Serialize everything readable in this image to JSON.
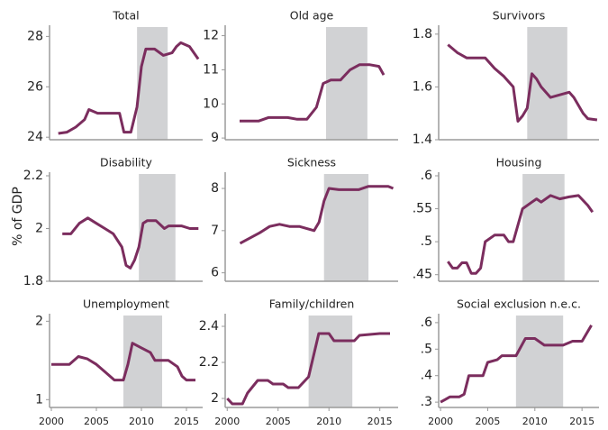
{
  "ylabel": "% of GDP",
  "chart_data": [
    {
      "type": "line",
      "title": "Total",
      "color": "#7b2d5e",
      "shade": [
        2009,
        2012.5
      ],
      "x": [
        2000,
        2001,
        2002,
        2003,
        2003.5,
        2004.5,
        2006,
        2007,
        2007.5,
        2008.3,
        2009,
        2009.5,
        2010,
        2011,
        2012,
        2013,
        2013.5,
        2014,
        2015,
        2016
      ],
      "values": [
        24.15,
        24.2,
        24.4,
        24.7,
        25.1,
        24.95,
        24.95,
        24.95,
        24.2,
        24.2,
        25.2,
        26.8,
        27.5,
        27.5,
        27.25,
        27.35,
        27.6,
        27.75,
        27.6,
        27.1
      ],
      "xlim": [
        1999,
        2016.5
      ],
      "ylim": [
        23.9,
        28.3
      ],
      "yticks": [
        24,
        26,
        28
      ]
    },
    {
      "type": "line",
      "title": "Old age",
      "color": "#7b2d5e",
      "shade": [
        2009,
        2013.3
      ],
      "x": [
        2000,
        2002,
        2003,
        2005,
        2006,
        2007,
        2008,
        2008.7,
        2009.5,
        2010.5,
        2011.5,
        2012.5,
        2013.5,
        2014.5,
        2015
      ],
      "values": [
        9.5,
        9.5,
        9.6,
        9.6,
        9.55,
        9.55,
        9.9,
        10.6,
        10.7,
        10.7,
        11.0,
        11.15,
        11.15,
        11.1,
        10.85
      ],
      "xlim": [
        1998.5,
        2016.5
      ],
      "ylim": [
        8.95,
        12.2
      ],
      "yticks": [
        9,
        10,
        11,
        12
      ]
    },
    {
      "type": "line",
      "title": "Survivors",
      "color": "#7b2d5e",
      "shade": [
        2008.5,
        2012.8
      ],
      "x": [
        2000,
        2001,
        2002,
        2004,
        2005,
        2006,
        2007,
        2007.5,
        2008,
        2008.5,
        2009,
        2009.5,
        2010,
        2011,
        2012,
        2013,
        2013.5,
        2014.5,
        2015,
        2016
      ],
      "values": [
        1.76,
        1.73,
        1.71,
        1.71,
        1.67,
        1.64,
        1.6,
        1.47,
        1.49,
        1.52,
        1.65,
        1.63,
        1.6,
        1.56,
        1.57,
        1.58,
        1.56,
        1.5,
        1.48,
        1.475
      ],
      "xlim": [
        1999,
        2016.2
      ],
      "ylim": [
        1.4,
        1.82
      ],
      "yticks": [
        1.4,
        1.6,
        1.8
      ]
    },
    {
      "type": "line",
      "title": "Disability",
      "color": "#7b2d5e",
      "shade": [
        2009,
        2013.3
      ],
      "x": [
        2000,
        2001,
        2002,
        2003,
        2004,
        2005,
        2006,
        2007,
        2007.5,
        2008,
        2008.5,
        2009,
        2009.5,
        2010,
        2011,
        2012,
        2012.5,
        2014,
        2015,
        2016
      ],
      "values": [
        1.98,
        1.98,
        2.02,
        2.04,
        2.02,
        2.0,
        1.98,
        1.93,
        1.86,
        1.85,
        1.88,
        1.93,
        2.02,
        2.03,
        2.03,
        2.0,
        2.01,
        2.01,
        2.0,
        2.0
      ],
      "xlim": [
        1998.5,
        2016.5
      ],
      "ylim": [
        1.8,
        2.2
      ],
      "yticks": [
        1.8,
        2,
        2.2
      ]
    },
    {
      "type": "line",
      "title": "Sickness",
      "color": "#7b2d5e",
      "shade": [
        2008.5,
        2013
      ],
      "x": [
        2000,
        2002,
        2003,
        2004,
        2005,
        2006,
        2007.5,
        2008,
        2008.5,
        2009,
        2010,
        2012,
        2013,
        2015,
        2015.5
      ],
      "values": [
        6.7,
        6.95,
        7.1,
        7.15,
        7.1,
        7.1,
        7.0,
        7.2,
        7.7,
        8.0,
        7.97,
        7.97,
        8.05,
        8.05,
        8.0
      ],
      "xlim": [
        1998.5,
        2016
      ],
      "ylim": [
        5.8,
        8.3
      ],
      "yticks": [
        6,
        7,
        8
      ]
    },
    {
      "type": "line",
      "title": "Housing",
      "color": "#7b2d5e",
      "shade": [
        2008,
        2012.5
      ],
      "x": [
        2000,
        2000.5,
        2001,
        2001.5,
        2002,
        2002.5,
        2003,
        2003.5,
        2004,
        2005,
        2006,
        2006.5,
        2007,
        2008,
        2009,
        2009.5,
        2010,
        2011,
        2012,
        2013,
        2014,
        2015,
        2015.5
      ],
      "values": [
        0.47,
        0.46,
        0.46,
        0.468,
        0.468,
        0.452,
        0.452,
        0.46,
        0.5,
        0.51,
        0.51,
        0.5,
        0.5,
        0.55,
        0.56,
        0.565,
        0.56,
        0.57,
        0.565,
        0.568,
        0.57,
        0.555,
        0.545
      ],
      "xlim": [
        1999,
        2016.2
      ],
      "ylim": [
        0.44,
        0.6
      ],
      "yticks": [
        {
          "value": 0.45,
          "label": ".45"
        },
        {
          "value": 0.5,
          "label": ".5"
        },
        {
          "value": 0.55,
          "label": ".55"
        },
        {
          "value": 0.6,
          "label": ".6"
        }
      ]
    },
    {
      "type": "line",
      "title": "Unemployment",
      "color": "#7b2d5e",
      "shade": [
        2008,
        2012.3
      ],
      "x": [
        2000,
        2002,
        2003,
        2004,
        2005,
        2006,
        2007,
        2008,
        2008.5,
        2009,
        2010,
        2011,
        2011.5,
        2013,
        2014,
        2014.5,
        2015,
        2016
      ],
      "values": [
        1.45,
        1.45,
        1.55,
        1.52,
        1.45,
        1.35,
        1.25,
        1.25,
        1.45,
        1.72,
        1.66,
        1.6,
        1.5,
        1.5,
        1.42,
        1.3,
        1.25,
        1.25
      ],
      "xlim": [
        1999.8,
        2016.8
      ],
      "ylim": [
        0.9,
        2.05
      ],
      "yticks": [
        1,
        2
      ],
      "xticks": [
        2000,
        2005,
        2010,
        2015
      ]
    },
    {
      "type": "line",
      "title": "Family/children",
      "color": "#7b2d5e",
      "shade": [
        2008,
        2012.3
      ],
      "x": [
        2000,
        2000.5,
        2001.5,
        2002,
        2003,
        2004,
        2004.5,
        2005.5,
        2006,
        2007,
        2008,
        2009,
        2010,
        2010.5,
        2012.5,
        2013,
        2015,
        2016
      ],
      "values": [
        2.0,
        1.97,
        1.97,
        2.03,
        2.1,
        2.1,
        2.08,
        2.08,
        2.06,
        2.06,
        2.12,
        2.36,
        2.36,
        2.32,
        2.32,
        2.35,
        2.36,
        2.36
      ],
      "xlim": [
        1999.8,
        2016.8
      ],
      "ylim": [
        1.95,
        2.45
      ],
      "yticks": [
        2,
        2.2,
        2.4
      ],
      "xticks": [
        2000,
        2005,
        2010,
        2015
      ]
    },
    {
      "type": "line",
      "title": "Social exclusion n.e.c.",
      "color": "#7b2d5e",
      "shade": [
        2008,
        2013
      ],
      "x": [
        2000,
        2000.5,
        2001,
        2002,
        2002.5,
        2003,
        2004.5,
        2005,
        2006,
        2006.5,
        2008,
        2009,
        2010,
        2011,
        2013,
        2014,
        2015,
        2015.5,
        2016
      ],
      "values": [
        0.3,
        0.31,
        0.32,
        0.32,
        0.33,
        0.4,
        0.4,
        0.45,
        0.46,
        0.475,
        0.475,
        0.54,
        0.54,
        0.515,
        0.515,
        0.53,
        0.53,
        0.56,
        0.59
      ],
      "xlim": [
        1999.8,
        2016.8
      ],
      "ylim": [
        0.28,
        0.62
      ],
      "yticks": [
        {
          "value": 0.3,
          "label": ".3"
        },
        {
          "value": 0.4,
          "label": ".4"
        },
        {
          "value": 0.5,
          "label": ".5"
        },
        {
          "value": 0.6,
          "label": ".6"
        }
      ],
      "xticks": [
        2000,
        2005,
        2010,
        2015
      ]
    }
  ]
}
